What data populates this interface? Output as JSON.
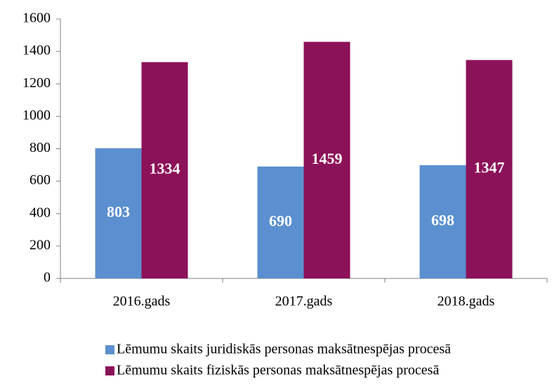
{
  "chart_data": {
    "type": "bar",
    "categories": [
      "2016.gads",
      "2017.gads",
      "2018.gads"
    ],
    "series": [
      {
        "name": "Lēmumu skaits juridiskās personas maksātnespējas procesā",
        "color": "#5b8fcf",
        "values": [
          803,
          690,
          698
        ]
      },
      {
        "name": "Lēmumu skaits fiziskās personas maksātnespējas procesā",
        "color": "#8b1158",
        "values": [
          1334,
          1459,
          1347
        ]
      }
    ],
    "ylim": [
      0,
      1600
    ],
    "yticks": [
      0,
      200,
      400,
      600,
      800,
      1000,
      1200,
      1400,
      1600
    ],
    "grid": false,
    "legend": "bottom"
  }
}
